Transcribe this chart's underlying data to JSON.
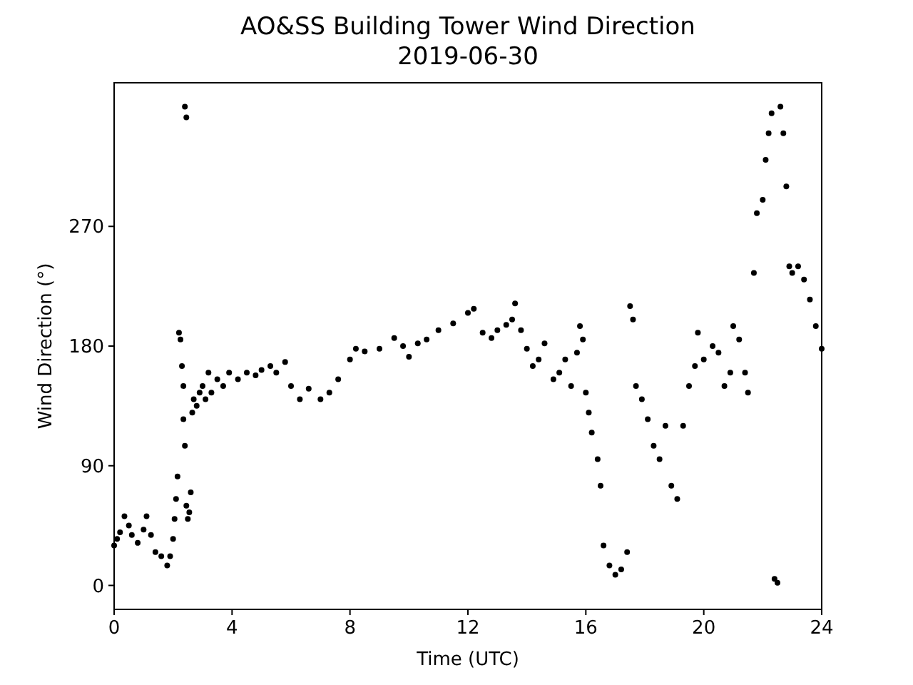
{
  "chart_data": {
    "type": "scatter",
    "title": "AO&SS Building Tower Wind Direction",
    "subtitle": "2019-06-30",
    "xlabel": "Time (UTC)",
    "ylabel": "Wind Direction (°)",
    "xlim": [
      0,
      24
    ],
    "ylim": [
      -18,
      378
    ],
    "xticks": [
      0,
      4,
      8,
      12,
      16,
      20,
      24
    ],
    "yticks": [
      0,
      90,
      180,
      270
    ],
    "grid": false,
    "marker": "circle",
    "series": [
      {
        "color": "#000000",
        "x": [
          0.0,
          0.1,
          0.2,
          0.35,
          0.5,
          0.6,
          0.8,
          1.0,
          1.1,
          1.25,
          1.4,
          1.6,
          1.8,
          1.9,
          2.0,
          2.05,
          2.1,
          2.15,
          2.2,
          2.25,
          2.3,
          2.35,
          2.35,
          2.4,
          2.4,
          2.45,
          2.45,
          2.5,
          2.55,
          2.6,
          2.65,
          2.7,
          2.8,
          2.9,
          3.0,
          3.1,
          3.2,
          3.3,
          3.5,
          3.7,
          3.9,
          4.2,
          4.5,
          4.8,
          5.0,
          5.3,
          5.5,
          5.8,
          6.0,
          6.3,
          6.6,
          7.0,
          7.3,
          7.6,
          8.0,
          8.2,
          8.5,
          9.0,
          9.5,
          9.8,
          10.0,
          10.3,
          10.6,
          11.0,
          11.5,
          12.0,
          12.2,
          12.5,
          12.8,
          13.0,
          13.3,
          13.5,
          13.6,
          13.8,
          14.0,
          14.2,
          14.4,
          14.6,
          14.9,
          15.1,
          15.3,
          15.5,
          15.7,
          15.8,
          15.9,
          16.0,
          16.1,
          16.2,
          16.4,
          16.5,
          16.6,
          16.8,
          17.0,
          17.2,
          17.4,
          17.5,
          17.6,
          17.7,
          17.9,
          18.1,
          18.3,
          18.5,
          18.7,
          18.9,
          19.1,
          19.3,
          19.5,
          19.7,
          19.8,
          20.0,
          20.3,
          20.5,
          20.7,
          20.9,
          21.0,
          21.2,
          21.4,
          21.5,
          21.7,
          21.8,
          22.0,
          22.1,
          22.2,
          22.3,
          22.4,
          22.5,
          22.6,
          22.7,
          22.8,
          22.9,
          23.0,
          23.2,
          23.4,
          23.6,
          23.8,
          24.0
        ],
        "values": [
          30,
          35,
          40,
          52,
          45,
          38,
          32,
          42,
          52,
          38,
          25,
          22,
          15,
          22,
          35,
          50,
          65,
          82,
          190,
          185,
          165,
          150,
          125,
          360,
          105,
          352,
          60,
          50,
          55,
          70,
          130,
          140,
          135,
          145,
          150,
          140,
          160,
          145,
          155,
          150,
          160,
          155,
          160,
          158,
          162,
          165,
          160,
          168,
          150,
          140,
          148,
          140,
          145,
          155,
          170,
          178,
          176,
          178,
          186,
          180,
          172,
          182,
          185,
          192,
          197,
          205,
          208,
          190,
          186,
          192,
          196,
          200,
          212,
          192,
          178,
          165,
          170,
          182,
          155,
          160,
          170,
          150,
          175,
          195,
          185,
          145,
          130,
          115,
          95,
          75,
          30,
          15,
          8,
          12,
          25,
          210,
          200,
          150,
          140,
          125,
          105,
          95,
          120,
          75,
          65,
          120,
          150,
          165,
          190,
          170,
          180,
          175,
          150,
          160,
          195,
          185,
          160,
          145,
          235,
          280,
          290,
          320,
          340,
          355,
          5,
          2,
          360,
          340,
          300,
          240,
          235,
          240,
          230,
          215,
          195,
          178
        ]
      }
    ]
  }
}
